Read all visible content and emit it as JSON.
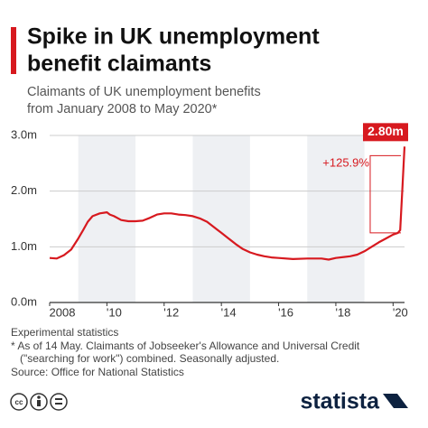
{
  "chart_data": {
    "type": "line",
    "title_lines": [
      "Spike in UK unemployment",
      "benefit claimants"
    ],
    "subtitle_lines": [
      "Claimants of UK unemployment benefits",
      "from January 2008 to May 2020*"
    ],
    "x": [
      2008.0,
      2008.25,
      2008.5,
      2008.75,
      2009.0,
      2009.17,
      2009.33,
      2009.5,
      2009.75,
      2010.0,
      2010.1,
      2010.25,
      2010.5,
      2010.75,
      2011.0,
      2011.25,
      2011.5,
      2011.75,
      2012.0,
      2012.25,
      2012.5,
      2012.75,
      2013.0,
      2013.25,
      2013.5,
      2013.75,
      2014.0,
      2014.25,
      2014.5,
      2014.75,
      2015.0,
      2015.25,
      2015.5,
      2015.75,
      2016.0,
      2016.5,
      2017.0,
      2017.5,
      2017.75,
      2018.0,
      2018.5,
      2018.75,
      2019.0,
      2019.25,
      2019.5,
      2019.75,
      2020.0,
      2020.17,
      2020.25,
      2020.33,
      2020.4
    ],
    "series": [
      {
        "name": "Claimants",
        "color": "#d7191f",
        "values": [
          0.8,
          0.79,
          0.85,
          0.95,
          1.15,
          1.3,
          1.45,
          1.55,
          1.6,
          1.62,
          1.58,
          1.55,
          1.48,
          1.46,
          1.46,
          1.47,
          1.52,
          1.58,
          1.6,
          1.6,
          1.58,
          1.57,
          1.55,
          1.51,
          1.45,
          1.35,
          1.25,
          1.15,
          1.05,
          0.96,
          0.9,
          0.86,
          0.83,
          0.81,
          0.8,
          0.78,
          0.79,
          0.79,
          0.77,
          0.8,
          0.83,
          0.86,
          0.92,
          1.0,
          1.08,
          1.15,
          1.22,
          1.25,
          1.3,
          2.1,
          2.8
        ]
      }
    ],
    "last_label": "2.80m",
    "change_label": "+125.9%",
    "xlim": [
      2008,
      2020.4
    ],
    "ylim": [
      0,
      3
    ],
    "xticks": [
      2008,
      {
        "value": 2010,
        "label": "'10"
      },
      {
        "value": 2012,
        "label": "'12"
      },
      {
        "value": 2014,
        "label": "'14"
      },
      {
        "value": 2016,
        "label": "'16"
      },
      {
        "value": 2018,
        "label": "'18"
      },
      {
        "value": 2020,
        "label": "'20"
      }
    ],
    "yticks": [
      {
        "value": 0,
        "label": "0.0m"
      },
      {
        "value": 1,
        "label": "1.0m"
      },
      {
        "value": 2,
        "label": "2.0m"
      },
      {
        "value": 3,
        "label": "3.0m"
      }
    ],
    "grid": true,
    "notes": [
      "Experimental statistics",
      "* As of 14 May. Claimants of Jobseeker's Allowance and Universal Credit",
      "(\"searching for work\") combined. Seasonally adjusted.",
      "Source: Office for National Statistics"
    ],
    "brand": "statista"
  }
}
